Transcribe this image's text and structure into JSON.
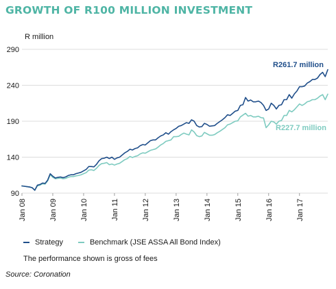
{
  "header": {
    "title": "GROWTH OF R100 MILLION INVESTMENT"
  },
  "colors": {
    "strategy": "#1f4e8a",
    "benchmark": "#7ecbc0",
    "title": "#4fb5a5",
    "grid": "#d0d0d0"
  },
  "legend": [
    {
      "name": "Strategy",
      "color": "#1f4e8a"
    },
    {
      "name": "Benchmark (JSE ASSA All Bond Index)",
      "color": "#7ecbc0"
    }
  ],
  "note": "The performance shown is gross of fees",
  "source": "Source: Coronation",
  "chart_data": {
    "type": "line",
    "title": "GROWTH OF R100 MILLION INVESTMENT",
    "ylabel": "R million",
    "xlabel": "",
    "ylim": [
      90,
      290
    ],
    "yticks": [
      90,
      140,
      190,
      240,
      290
    ],
    "grid": "horizontal",
    "legend_position": "bottom",
    "x_start": "2008-01",
    "x_end": "2017-12",
    "xticks": [
      "Jan 08",
      "Jan 09",
      "Jan 10",
      "Jan 11",
      "Jan 12",
      "Jan 13",
      "Jan 14",
      "Jan 15",
      "Jan 16",
      "Jan 17"
    ],
    "annotations": [
      {
        "series": "Strategy",
        "text": "R261.7 million"
      },
      {
        "series": "Benchmark (JSE ASSA All Bond Index)",
        "text": "R227.7 million"
      }
    ],
    "series": [
      {
        "name": "Strategy",
        "color": "#1f4e8a",
        "values": [
          100,
          99.5,
          99,
          98.5,
          97.5,
          94,
          101,
          102,
          104,
          103.5,
          108,
          117,
          113.5,
          111,
          112,
          112.5,
          111.5,
          112.5,
          114.5,
          115.5,
          115.5,
          117,
          118,
          119,
          121,
          123,
          127,
          127,
          126.5,
          130,
          135,
          138,
          138.5,
          140,
          138,
          140,
          137,
          139,
          140,
          143,
          146,
          148,
          151,
          150,
          152,
          153,
          156,
          157.5,
          157,
          160,
          163,
          164,
          164,
          167,
          169.5,
          171,
          174,
          172,
          175.5,
          178,
          180,
          183,
          184,
          186,
          188,
          187,
          192,
          190,
          184,
          182,
          182.5,
          187,
          185.5,
          183,
          183.5,
          184,
          187,
          189.5,
          192,
          195,
          199,
          198,
          201,
          204,
          205,
          212,
          213,
          223,
          218,
          219.5,
          217,
          217,
          218,
          216,
          212,
          205,
          207,
          215,
          212,
          207,
          212,
          213,
          220,
          220,
          227,
          222,
          228,
          232,
          238,
          238,
          239,
          243,
          245,
          248,
          248,
          250,
          255,
          258,
          252,
          261.7
        ]
      },
      {
        "name": "Benchmark (JSE ASSA All Bond Index)",
        "color": "#7ecbc0",
        "values": [
          100,
          99.5,
          99,
          98.5,
          97.5,
          94,
          100,
          101,
          103,
          102.5,
          107,
          115.5,
          112,
          110,
          110.5,
          111,
          110,
          110.5,
          112,
          113,
          113,
          114,
          114.5,
          115.5,
          117,
          118.5,
          122,
          122.5,
          121.5,
          124.5,
          128.5,
          131,
          131.5,
          132.5,
          129.5,
          130.5,
          129,
          130.5,
          131.5,
          134,
          136.5,
          138,
          141,
          139.5,
          141,
          142,
          144.5,
          146,
          145.5,
          147.5,
          149.5,
          150.5,
          151.5,
          154,
          157,
          159,
          162,
          163,
          164,
          168.5,
          168.5,
          169,
          171.5,
          173.5,
          172,
          171,
          178,
          175,
          170,
          168.5,
          169.5,
          174.5,
          172.5,
          170.5,
          170.5,
          171.5,
          174,
          176,
          178.5,
          181,
          185,
          186,
          188,
          190,
          190.5,
          196,
          198.5,
          201,
          197,
          198,
          196,
          196,
          197,
          195,
          194.5,
          181,
          185,
          190,
          189,
          186,
          190,
          191,
          198,
          198,
          205,
          203,
          206,
          210,
          214,
          212,
          214,
          217,
          218,
          220,
          220,
          222,
          225,
          227,
          220,
          227.7
        ]
      }
    ]
  }
}
